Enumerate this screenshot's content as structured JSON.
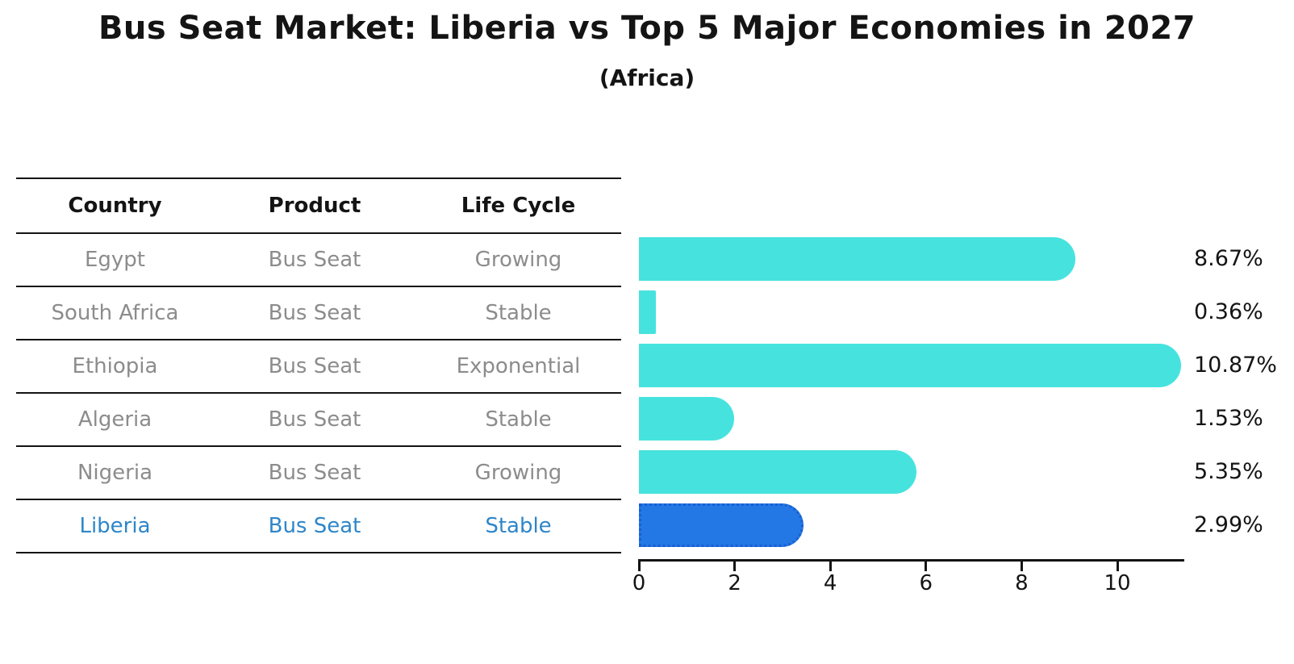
{
  "title": "Bus Seat Market: Liberia vs Top 5 Major Economies in 2027",
  "subtitle": "(Africa)",
  "table": {
    "headers": [
      "Country",
      "Product",
      "Life Cycle"
    ],
    "rows": [
      {
        "country": "Egypt",
        "product": "Bus Seat",
        "life_cycle": "Growing",
        "highlight": false
      },
      {
        "country": "South Africa",
        "product": "Bus Seat",
        "life_cycle": "Stable",
        "highlight": false
      },
      {
        "country": "Ethiopia",
        "product": "Bus Seat",
        "life_cycle": "Exponential",
        "highlight": false
      },
      {
        "country": "Algeria",
        "product": "Bus Seat",
        "life_cycle": "Stable",
        "highlight": false
      },
      {
        "country": "Nigeria",
        "product": "Bus Seat",
        "life_cycle": "Growing",
        "highlight": true
      }
    ]
  },
  "chart_data": {
    "type": "bar",
    "orientation": "horizontal",
    "title": "Bus Seat Market: Liberia vs Top 5 Major Economies in 2027",
    "subtitle": "(Africa)",
    "categories": [
      "Egypt",
      "South Africa",
      "Ethiopia",
      "Algeria",
      "Nigeria",
      "Liberia"
    ],
    "values": [
      8.67,
      0.36,
      10.87,
      1.53,
      5.35,
      2.99
    ],
    "value_labels": [
      "8.67%",
      "0.36%",
      "10.87%",
      "1.53%",
      "5.35%",
      "2.99%"
    ],
    "x_ticks": [
      0,
      2,
      4,
      6,
      8,
      10
    ],
    "xlim": [
      0,
      11.4
    ],
    "grid": false,
    "legend": "none",
    "highlight_index": 5
  },
  "colors": {
    "bar": "#46e3de",
    "highlight_bar": "#2378e6",
    "highlight_bar_border": "#1a5fd0",
    "highlight_text": "#2e86c9",
    "row_text": "#8c8c8c",
    "axis": "#141414"
  }
}
